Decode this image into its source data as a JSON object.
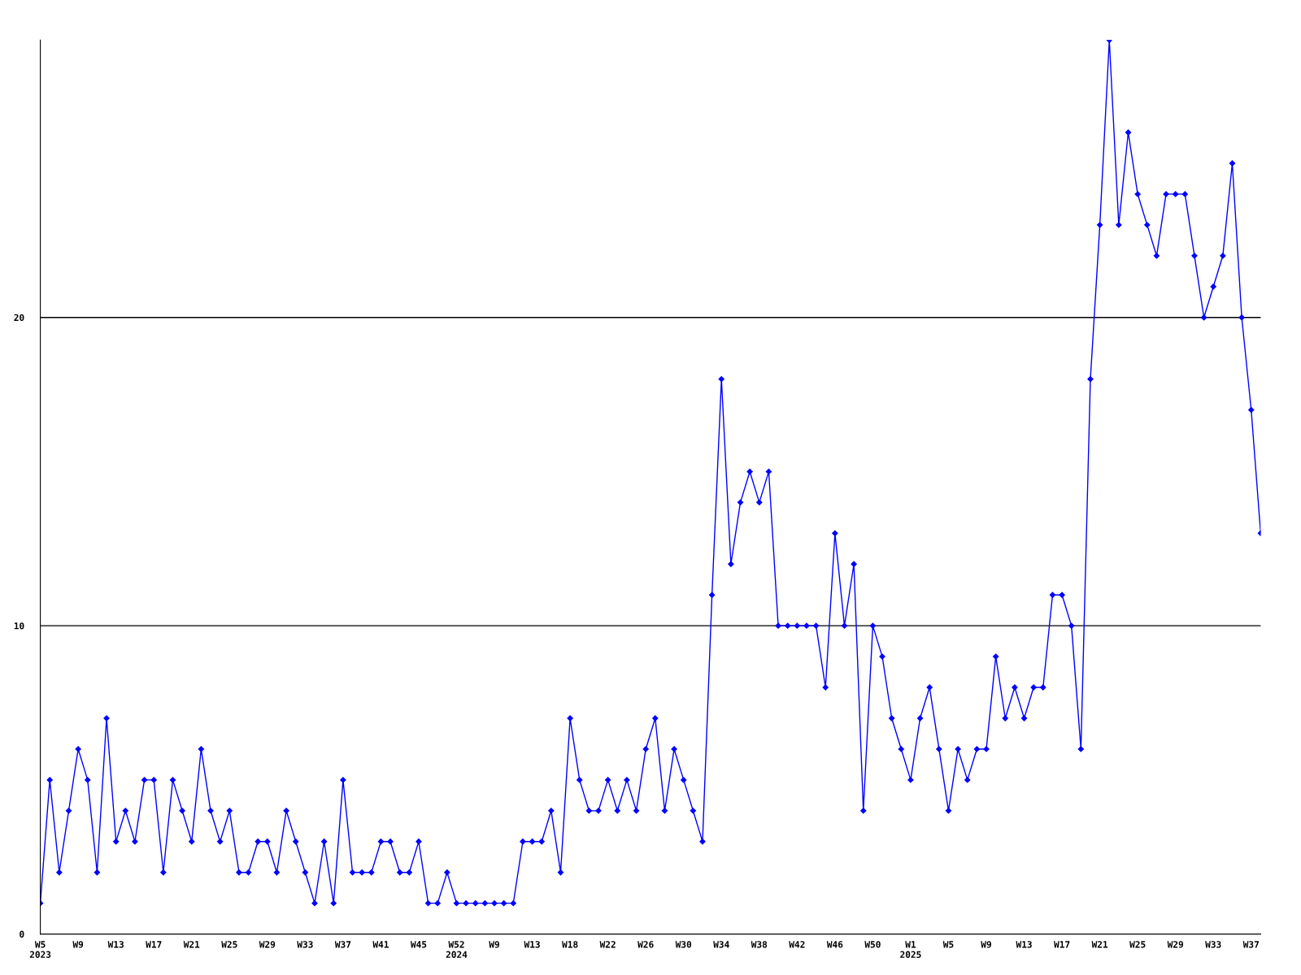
{
  "chart_data": {
    "type": "line",
    "categories": [
      "W5\n2023",
      null,
      null,
      null,
      "W9",
      null,
      null,
      null,
      "W13",
      null,
      null,
      null,
      "W17",
      null,
      null,
      null,
      "W21",
      null,
      null,
      null,
      "W25",
      null,
      null,
      null,
      "W29",
      null,
      null,
      null,
      "W33",
      null,
      null,
      null,
      "W37",
      null,
      null,
      null,
      "W41",
      null,
      null,
      null,
      "W45",
      null,
      null,
      null,
      "W52\n2024",
      null,
      null,
      null,
      "W9",
      null,
      null,
      null,
      "W13",
      null,
      null,
      null,
      "W18",
      null,
      null,
      null,
      "W22",
      null,
      null,
      null,
      "W26",
      null,
      null,
      null,
      "W30",
      null,
      null,
      null,
      "W34",
      null,
      null,
      null,
      "W38",
      null,
      null,
      null,
      "W42",
      null,
      null,
      null,
      "W46",
      null,
      null,
      null,
      "W50",
      null,
      null,
      null,
      "W1\n2025",
      null,
      null,
      null,
      "W5",
      null,
      null,
      null,
      "W9",
      null,
      null,
      null,
      "W13",
      null,
      null,
      null,
      "W17",
      null,
      null,
      null,
      "W21",
      null,
      null,
      null,
      "W25",
      null,
      null,
      null,
      "W29",
      null,
      null,
      null,
      "W33",
      null,
      null,
      null,
      "W37",
      null
    ],
    "series": [
      {
        "color": "#0000ff",
        "values": [
          1,
          5,
          2,
          4,
          6,
          5,
          2,
          7,
          3,
          4,
          3,
          5,
          5,
          2,
          5,
          4,
          3,
          6,
          4,
          3,
          4,
          2,
          2,
          3,
          3,
          2,
          4,
          3,
          2,
          1,
          3,
          1,
          5,
          2,
          2,
          2,
          3,
          3,
          2,
          2,
          3,
          1,
          1,
          2,
          1,
          1,
          1,
          1,
          1,
          1,
          1,
          3,
          3,
          3,
          4,
          2,
          7,
          5,
          4,
          4,
          5,
          4,
          5,
          4,
          6,
          7,
          4,
          6,
          5,
          4,
          3,
          11,
          18,
          12,
          14,
          15,
          14,
          15,
          10,
          10,
          10,
          10,
          10,
          8,
          13,
          10,
          12,
          4,
          10,
          9,
          7,
          6,
          5,
          7,
          8,
          6,
          4,
          6,
          5,
          6,
          6,
          9,
          7,
          8,
          7,
          8,
          8,
          11,
          11,
          10,
          6,
          18,
          23,
          29,
          23,
          26,
          24,
          23,
          22,
          24,
          24,
          24,
          22,
          20,
          21,
          22,
          25,
          20,
          17,
          13
        ]
      }
    ],
    "ylim": [
      0,
      29
    ],
    "yticks": [
      0,
      10,
      20
    ],
    "grid": "y",
    "marker": "diamond",
    "line_style": "solid"
  }
}
